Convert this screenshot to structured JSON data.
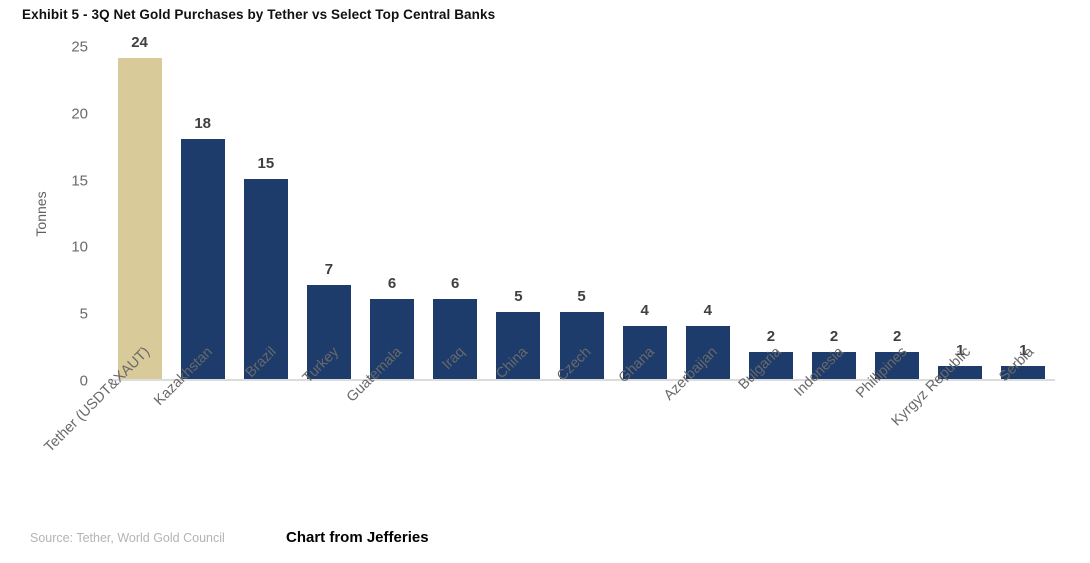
{
  "page": {
    "title": "Exhibit 5 - 3Q Net Gold Purchases by Tether vs Select Top Central Banks",
    "source": "Source: Tether, World Gold Council",
    "credit": "Chart from Jefferies"
  },
  "chart_data": {
    "type": "bar",
    "title": "Exhibit 5 - 3Q Net Gold Purchases by Tether vs Select Top Central Banks",
    "xlabel": "",
    "ylabel": "Tonnes",
    "ylim": [
      0,
      25
    ],
    "yticks": [
      0,
      5,
      10,
      15,
      20,
      25
    ],
    "grid": false,
    "legend_position": "none",
    "value_labels": true,
    "categories": [
      "Tether (USDT&XAUT)",
      "Kazakhstan",
      "Brazil",
      "Turkey",
      "Guatemala",
      "Iraq",
      "China",
      "Czech",
      "Ghana",
      "Azerbaijan",
      "Bulgaria",
      "Indonesia",
      "Phillipines",
      "Kyrgyz Republic",
      "Serbia"
    ],
    "values": [
      24,
      18,
      15,
      7,
      6,
      6,
      5,
      5,
      4,
      4,
      2,
      2,
      2,
      1,
      1
    ],
    "highlight_index": 0,
    "colors": {
      "highlight_bar": "#d9ca9a",
      "default_bar": "#1d3c6b",
      "axis_line": "#dcdcdc",
      "tick_text": "#6a6a6a",
      "value_text": "#404040"
    }
  }
}
